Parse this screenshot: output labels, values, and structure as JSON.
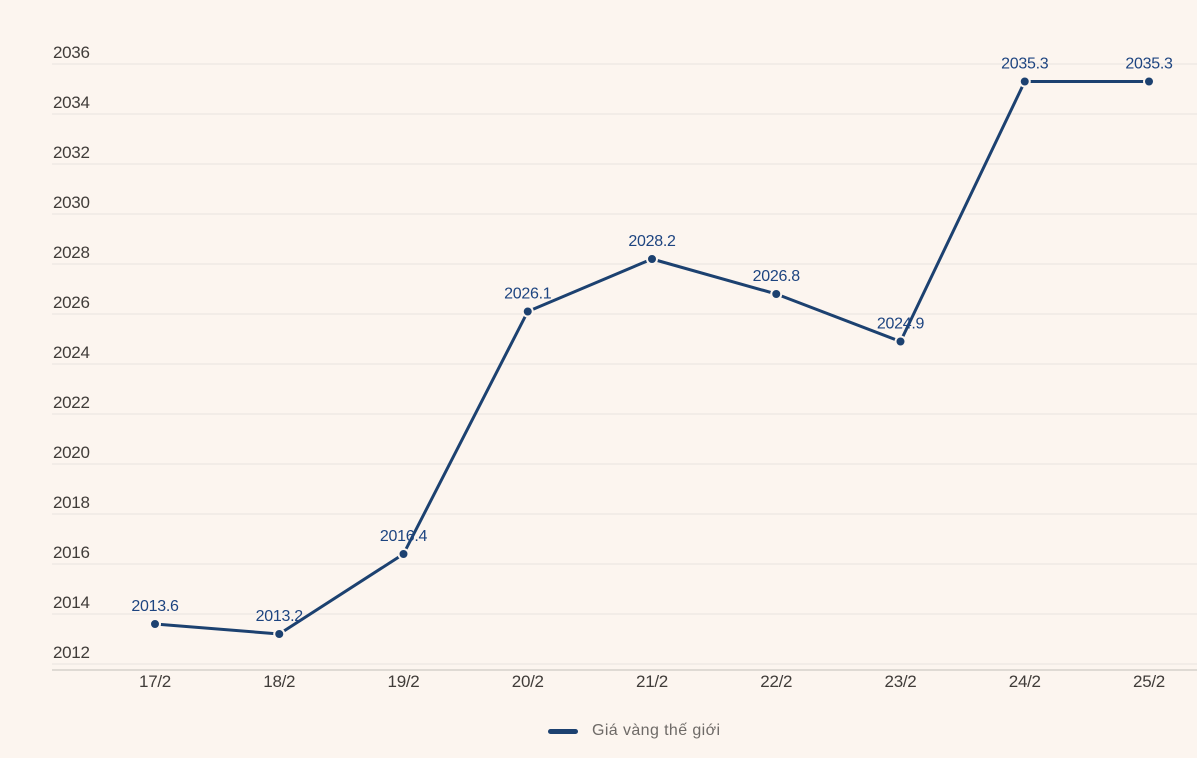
{
  "page": {
    "background": "#fcf5ef"
  },
  "chart_data": {
    "type": "line",
    "title": "",
    "categories": [
      "17/2",
      "18/2",
      "19/2",
      "20/2",
      "21/2",
      "22/2",
      "23/2",
      "24/2",
      "25/2"
    ],
    "series": [
      {
        "name": "Giá vàng thế giới",
        "values": [
          2013.6,
          2013.2,
          2016.4,
          2026.1,
          2028.2,
          2026.8,
          2024.9,
          2035.3,
          2035.3
        ],
        "color": "#1c4170"
      }
    ],
    "xlabel": "",
    "ylabel": "",
    "ylim": [
      2012,
      2036
    ],
    "ytick_step": 2,
    "grid": true,
    "data_labels": true,
    "legend_position": "bottom"
  },
  "legend": {
    "label": "Giá vàng thế giới"
  },
  "colors": {
    "background": "#fcf5ef",
    "line": "#1c4170",
    "marker": "#1c4170",
    "marker_halo": "#fcf5ef",
    "data_label": "#1d4480",
    "grid_line": "#e7e3df",
    "axis_line": "#c2beba",
    "axis_label": "#403c39",
    "legend_text": "#6e6a67"
  }
}
